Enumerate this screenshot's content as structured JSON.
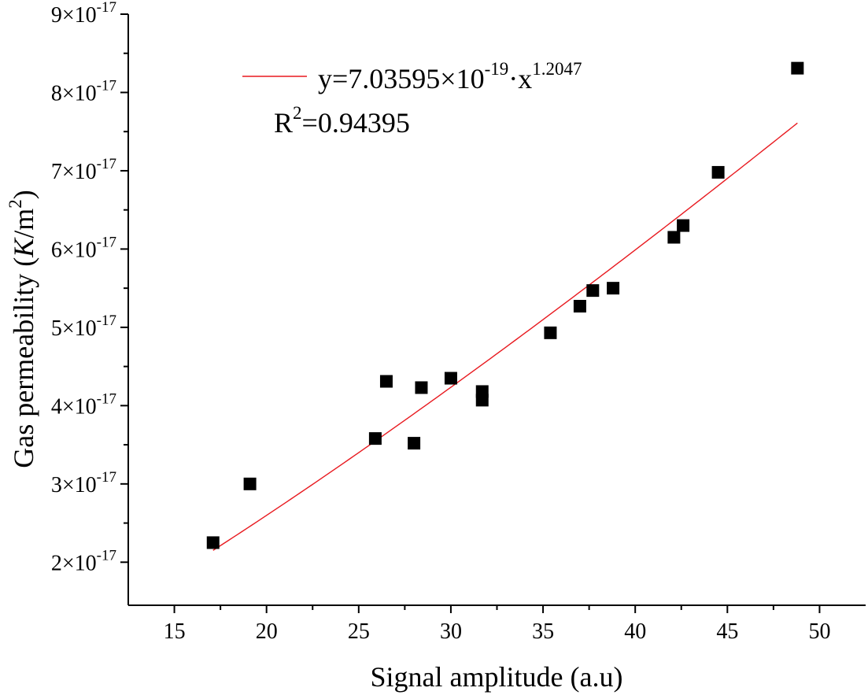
{
  "chart_data": {
    "type": "scatter",
    "xlabel": "Signal amplitude (a.u)",
    "ylabel": {
      "prefix": "Gas permeability (",
      "k": "K",
      "unit": "/m",
      "sup": "2",
      "suffix": ")"
    },
    "xlim": [
      12.5,
      52.5
    ],
    "ylim": [
      1.45,
      9.0
    ],
    "x_ticks": [
      15,
      20,
      25,
      30,
      35,
      40,
      45,
      50
    ],
    "x_tick_labels": [
      "15",
      "20",
      "25",
      "30",
      "35",
      "40",
      "45",
      "50"
    ],
    "y_ticks": [
      2,
      3,
      4,
      5,
      6,
      7,
      8,
      9
    ],
    "y_tick_labels": [
      {
        "mantissa": "2×10",
        "exp": "-17"
      },
      {
        "mantissa": "3×10",
        "exp": "-17"
      },
      {
        "mantissa": "4×10",
        "exp": "-17"
      },
      {
        "mantissa": "5×10",
        "exp": "-17"
      },
      {
        "mantissa": "6×10",
        "exp": "-17"
      },
      {
        "mantissa": "7×10",
        "exp": "-17"
      },
      {
        "mantissa": "8×10",
        "exp": "-17"
      },
      {
        "mantissa": "9×10",
        "exp": "-17"
      }
    ],
    "y_unit_scale": "1e-17",
    "points": [
      {
        "x": 17.1,
        "y": 2.25
      },
      {
        "x": 19.1,
        "y": 3.0
      },
      {
        "x": 25.9,
        "y": 3.58
      },
      {
        "x": 26.5,
        "y": 4.31
      },
      {
        "x": 28.0,
        "y": 3.52
      },
      {
        "x": 28.4,
        "y": 4.23
      },
      {
        "x": 30.0,
        "y": 4.35
      },
      {
        "x": 31.7,
        "y": 4.18
      },
      {
        "x": 31.7,
        "y": 4.07
      },
      {
        "x": 35.4,
        "y": 4.93
      },
      {
        "x": 37.0,
        "y": 5.27
      },
      {
        "x": 37.7,
        "y": 5.47
      },
      {
        "x": 38.8,
        "y": 5.5
      },
      {
        "x": 42.1,
        "y": 6.15
      },
      {
        "x": 42.6,
        "y": 6.3
      },
      {
        "x": 44.5,
        "y": 6.98
      },
      {
        "x": 48.8,
        "y": 8.31
      }
    ],
    "fit": {
      "coefficient": 7.03595e-19,
      "exponent": 1.2047,
      "x_range": [
        17.1,
        48.8
      ],
      "color": "#e8191f"
    },
    "legend": {
      "position": "top-left",
      "eq_prefix": "y=7.03595×10",
      "eq_exp1": "-19",
      "eq_mid": "·x",
      "eq_exp2": "1.2047",
      "r2_label": "R",
      "r2_sup": "2",
      "r2_value": "=0.94395"
    },
    "marker_color": "#000000"
  }
}
